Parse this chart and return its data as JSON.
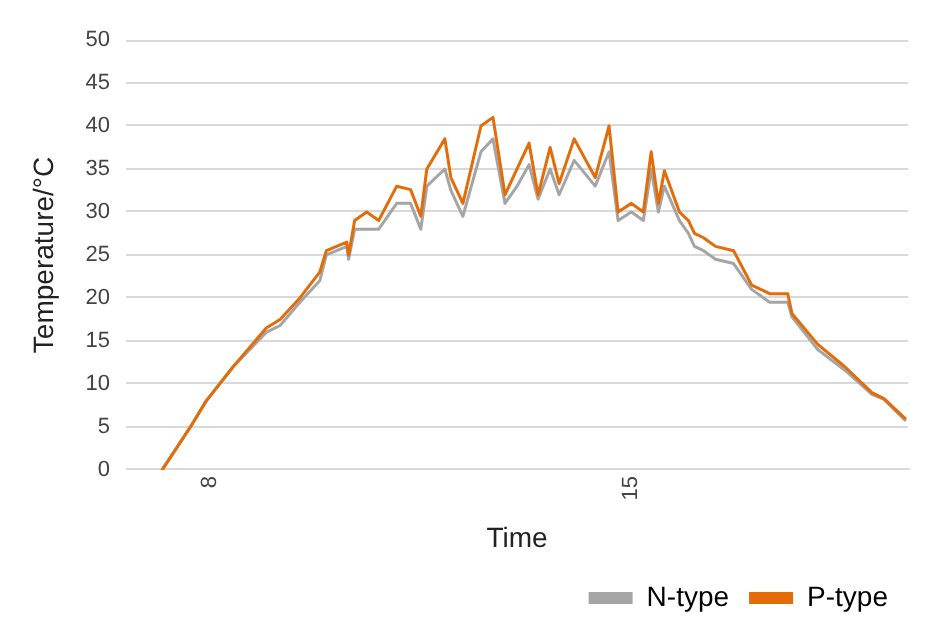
{
  "chart_data": {
    "type": "line",
    "xlabel": "Time",
    "ylabel": "Temperature/°C",
    "x": [
      7.2,
      7.67,
      7.93,
      8.38,
      8.93,
      9.16,
      9.49,
      9.82,
      9.93,
      10.27,
      10.3,
      10.4,
      10.6,
      10.8,
      11.1,
      11.33,
      11.5,
      11.6,
      11.9,
      12.0,
      12.2,
      12.5,
      12.7,
      12.9,
      13.1,
      13.3,
      13.45,
      13.65,
      13.8,
      14.05,
      14.4,
      14.63,
      14.78,
      15.0,
      15.2,
      15.33,
      15.45,
      15.55,
      15.8,
      15.95,
      16.05,
      16.2,
      16.4,
      16.7,
      17.0,
      17.3,
      17.6,
      17.67,
      18.1,
      18.55,
      19.0,
      19.2,
      19.55
    ],
    "series": [
      {
        "name": "N-type",
        "color": "#a5a5a5",
        "values": [
          0,
          5,
          8,
          12,
          16,
          16.8,
          19.5,
          22,
          25,
          26,
          24.5,
          28,
          28,
          28,
          31,
          31,
          28,
          33,
          35,
          32.5,
          29.5,
          37,
          38.5,
          31,
          33,
          35.5,
          31.5,
          35,
          32,
          36,
          33,
          37,
          29,
          30,
          29,
          35,
          30,
          33,
          29,
          27.5,
          26,
          25.5,
          24.5,
          24,
          21,
          19.5,
          19.5,
          17.8,
          14,
          11.6,
          8.8,
          8.2,
          5.8
        ]
      },
      {
        "name": "P-type",
        "color": "#e36c09",
        "values": [
          0,
          5,
          8,
          12,
          16.5,
          17.5,
          20,
          23,
          25.5,
          26.5,
          25,
          29,
          30,
          29,
          33,
          32.6,
          29.5,
          35,
          38.5,
          34,
          31,
          40,
          41,
          32,
          35,
          38,
          32,
          37.5,
          33.3,
          38.5,
          34,
          40,
          30,
          31,
          30,
          37,
          31,
          34.8,
          30,
          29,
          27.5,
          27,
          26,
          25.5,
          21.5,
          20.5,
          20.5,
          18.2,
          14.6,
          12,
          9,
          8.3,
          6
        ]
      }
    ],
    "xlim": [
      6.6,
      19.6
    ],
    "xticks": [
      8,
      15
    ],
    "ylim": [
      0,
      50
    ],
    "yticks": [
      0,
      5,
      10,
      15,
      20,
      25,
      30,
      35,
      40,
      45,
      50
    ],
    "grid": "y",
    "legend": "bottom right",
    "marker": "none",
    "line_style": "solid"
  }
}
